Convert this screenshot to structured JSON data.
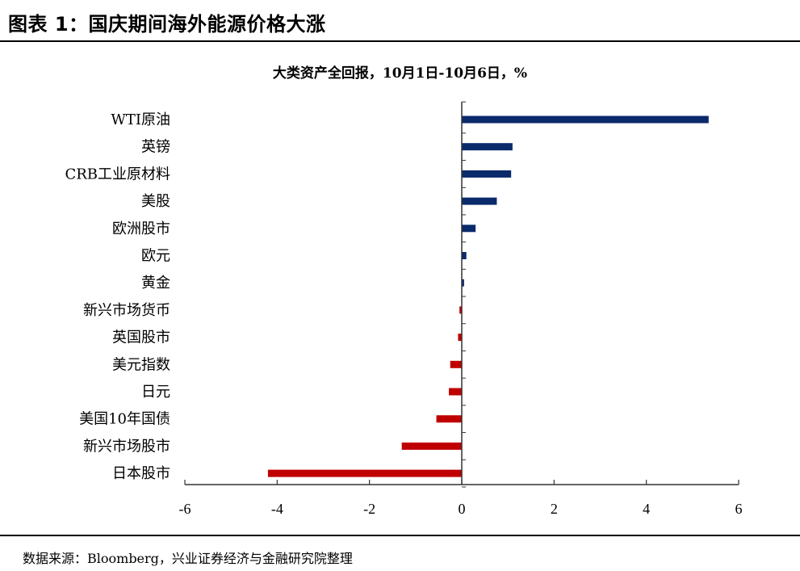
{
  "figure": {
    "title": "图表 1：国庆期间海外能源价格大涨",
    "source": "数据来源：Bloomberg，兴业证券经济与金融研究院整理"
  },
  "colors": {
    "positive": "#0b2a6b",
    "negative": "#c00000",
    "axis": "#333333"
  },
  "chart_data": {
    "type": "bar",
    "orientation": "horizontal",
    "title": "大类资产全回报，10月1日-10月6日，%",
    "categories": [
      "WTI原油",
      "英镑",
      "CRB工业原材料",
      "美股",
      "欧洲股市",
      "欧元",
      "黄金",
      "新兴市场货币",
      "英国股市",
      "美元指数",
      "日元",
      "美国10年国债",
      "新兴市场股市",
      "日本股市"
    ],
    "values": [
      5.35,
      1.1,
      1.07,
      0.76,
      0.3,
      0.1,
      0.05,
      -0.05,
      -0.08,
      -0.25,
      -0.28,
      -0.55,
      -1.3,
      -4.2
    ],
    "xlim": [
      -6,
      6
    ],
    "xticks": [
      -6,
      -4,
      -2,
      0,
      2,
      4,
      6
    ],
    "grid": false,
    "legend": "none"
  }
}
